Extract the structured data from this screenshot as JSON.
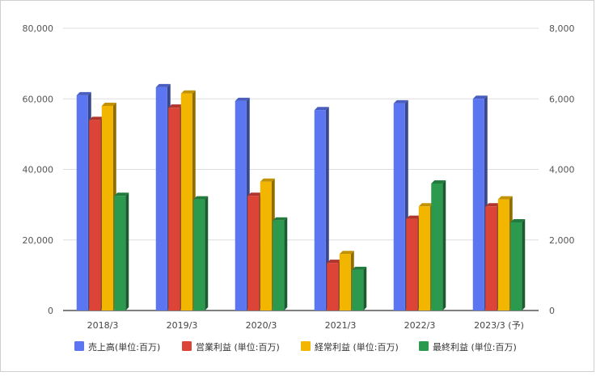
{
  "chart_data": {
    "type": "bar",
    "categories": [
      "2018/3",
      "2019/3",
      "2020/3",
      "2021/3",
      "2022/3",
      "2023/3 (予)"
    ],
    "series": [
      {
        "name": "売上高(単位:百万)",
        "color": "#5b76f0",
        "axis": "left",
        "values": [
          61000,
          63300,
          59400,
          56800,
          58700,
          60000
        ]
      },
      {
        "name": "営業利益 (単位:百万)",
        "color": "#db4437",
        "axis": "right",
        "values": [
          5400,
          5750,
          3250,
          1350,
          2600,
          2950
        ]
      },
      {
        "name": "経常利益 (単位:百万)",
        "color": "#f2b600",
        "axis": "right",
        "values": [
          5800,
          6150,
          3650,
          1600,
          2950,
          3150
        ]
      },
      {
        "name": "最終利益 (単位:百万)",
        "color": "#2b9a4e",
        "axis": "right",
        "values": [
          3250,
          3150,
          2550,
          1150,
          3600,
          2500
        ]
      }
    ],
    "y_left": {
      "range": [
        0,
        80000
      ],
      "ticks": [
        "0",
        "20,000",
        "40,000",
        "60,000",
        "80,000"
      ]
    },
    "y_right": {
      "range": [
        0,
        8000
      ],
      "ticks": [
        "0",
        "2,000",
        "4,000",
        "6,000",
        "8,000"
      ]
    },
    "grid": true,
    "legend_position": "bottom",
    "bar_style": "3d"
  }
}
